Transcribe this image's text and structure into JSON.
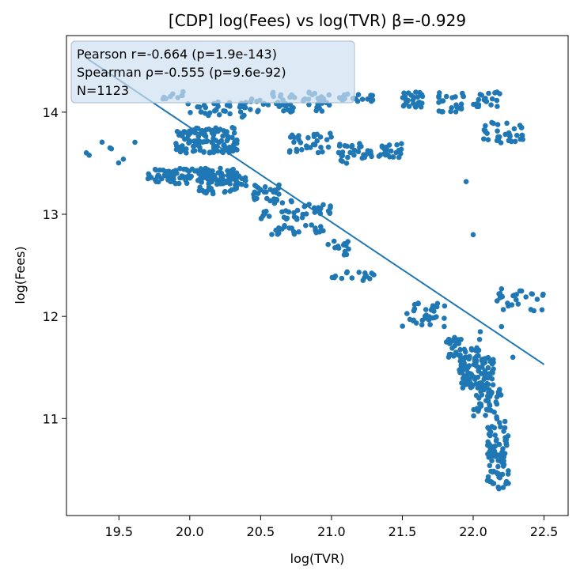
{
  "chart_data": {
    "type": "scatter",
    "title": "[CDP] log(Fees) vs log(TVR)  β=-0.929",
    "xlabel": "log(TVR)",
    "ylabel": "log(Fees)",
    "xlim": [
      19.13,
      22.67
    ],
    "ylim": [
      10.05,
      14.75
    ],
    "xticks": [
      "19.5",
      "20.0",
      "20.5",
      "21.0",
      "21.5",
      "22.0",
      "22.5"
    ],
    "yticks": [
      "11",
      "12",
      "13",
      "14"
    ],
    "grid": false,
    "color": "#1f77b4",
    "stats": {
      "pearson": "Pearson r=-0.664 (p=1.9e-143)",
      "spearman": "Spearman ρ=-0.555 (p=9.6e-92)",
      "n": "N=1123"
    },
    "fit_line": {
      "x": [
        19.27,
        22.5
      ],
      "y": [
        14.53,
        11.53
      ]
    },
    "clusters": [
      {
        "x": [
          19.7,
          20.35
        ],
        "y": [
          13.3,
          13.45
        ],
        "n": 110
      },
      {
        "x": [
          20.05,
          20.4
        ],
        "y": [
          13.2,
          13.4
        ],
        "n": 60
      },
      {
        "x": [
          19.9,
          20.35
        ],
        "y": [
          13.6,
          13.85
        ],
        "n": 110
      },
      {
        "x": [
          20.0,
          20.4
        ],
        "y": [
          13.95,
          14.1
        ],
        "n": 35
      },
      {
        "x": [
          20.4,
          20.75
        ],
        "y": [
          14.0,
          14.2
        ],
        "n": 35
      },
      {
        "x": [
          20.45,
          20.75
        ],
        "y": [
          13.1,
          13.3
        ],
        "n": 30
      },
      {
        "x": [
          20.5,
          20.85
        ],
        "y": [
          12.95,
          13.05
        ],
        "n": 20
      },
      {
        "x": [
          20.55,
          20.95
        ],
        "y": [
          12.8,
          12.9
        ],
        "n": 25
      },
      {
        "x": [
          20.7,
          21.0
        ],
        "y": [
          13.6,
          13.8
        ],
        "n": 30
      },
      {
        "x": [
          20.8,
          21.0
        ],
        "y": [
          13.0,
          13.1
        ],
        "n": 20
      },
      {
        "x": [
          20.8,
          21.0
        ],
        "y": [
          14.0,
          14.2
        ],
        "n": 25
      },
      {
        "x": [
          21.05,
          21.3
        ],
        "y": [
          13.5,
          13.7
        ],
        "n": 30
      },
      {
        "x": [
          21.3,
          21.5
        ],
        "y": [
          13.55,
          13.7
        ],
        "n": 25
      },
      {
        "x": [
          21.05,
          21.3
        ],
        "y": [
          14.1,
          14.18
        ],
        "n": 20
      },
      {
        "x": [
          21.5,
          21.65
        ],
        "y": [
          14.05,
          14.2
        ],
        "n": 30
      },
      {
        "x": [
          21.75,
          21.95
        ],
        "y": [
          14.0,
          14.2
        ],
        "n": 25
      },
      {
        "x": [
          22.0,
          22.2
        ],
        "y": [
          14.05,
          14.2
        ],
        "n": 20
      },
      {
        "x": [
          22.05,
          22.35
        ],
        "y": [
          13.7,
          13.9
        ],
        "n": 35
      },
      {
        "x": [
          20.95,
          21.15
        ],
        "y": [
          12.6,
          12.75
        ],
        "n": 15
      },
      {
        "x": [
          21.0,
          21.3
        ],
        "y": [
          12.35,
          12.45
        ],
        "n": 15
      },
      {
        "x": [
          21.5,
          21.8
        ],
        "y": [
          11.9,
          12.15
        ],
        "n": 35
      },
      {
        "x": [
          21.8,
          22.05
        ],
        "y": [
          11.6,
          11.8
        ],
        "n": 40
      },
      {
        "x": [
          21.9,
          22.15
        ],
        "y": [
          11.3,
          11.6
        ],
        "n": 100
      },
      {
        "x": [
          22.0,
          22.2
        ],
        "y": [
          11.0,
          11.3
        ],
        "n": 40
      },
      {
        "x": [
          22.1,
          22.25
        ],
        "y": [
          10.3,
          11.0
        ],
        "n": 85
      },
      {
        "x": [
          22.15,
          22.5
        ],
        "y": [
          12.05,
          12.25
        ],
        "n": 25
      },
      {
        "x": [
          19.27,
          19.7
        ],
        "y": [
          13.5,
          13.72
        ],
        "n": 8
      },
      {
        "x": [
          19.8,
          20.0
        ],
        "y": [
          14.05,
          14.2
        ],
        "n": 10
      }
    ],
    "points": [
      [
        22.0,
        12.8
      ],
      [
        21.95,
        13.32
      ],
      [
        22.2,
        11.9
      ],
      [
        22.28,
        11.6
      ],
      [
        22.05,
        11.85
      ],
      [
        22.2,
        12.27
      ]
    ]
  }
}
